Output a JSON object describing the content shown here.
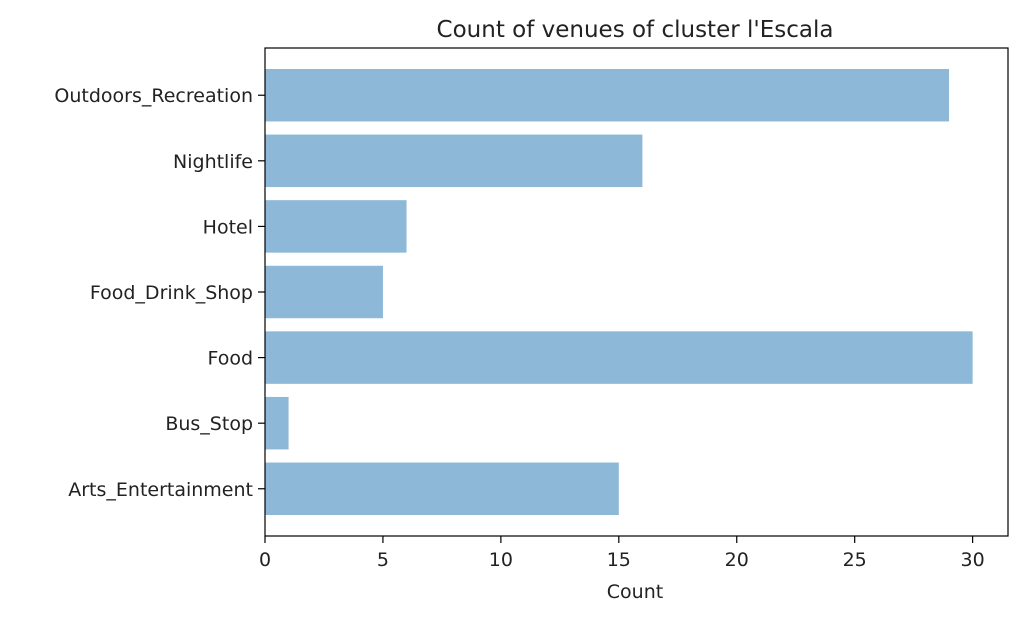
{
  "chart_data": {
    "type": "bar",
    "orientation": "horizontal",
    "title": "Count of venues of cluster l'Escala",
    "xlabel": "Count",
    "ylabel": "",
    "xlim": [
      0,
      31.5
    ],
    "xticks": [
      0,
      5,
      10,
      15,
      20,
      25,
      30
    ],
    "categories": [
      "Arts_Entertainment",
      "Bus_Stop",
      "Food",
      "Food_Drink_Shop",
      "Hotel",
      "Nightlife",
      "Outdoors_Recreation"
    ],
    "values": [
      15,
      1,
      30,
      5,
      6,
      16,
      29
    ],
    "bar_color": "#8db8d8",
    "grid": false,
    "legend": "none"
  }
}
